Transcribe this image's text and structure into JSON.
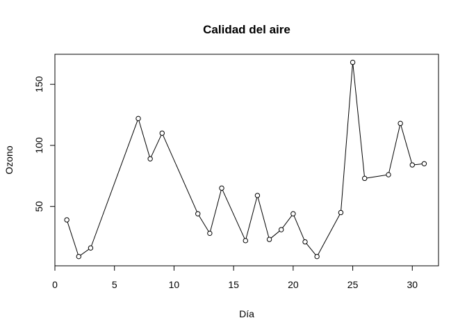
{
  "chart_data": {
    "type": "line",
    "title": "Calidad del aire",
    "xlabel": "Día",
    "ylabel": "Ozono",
    "xlim": [
      0,
      32.2
    ],
    "ylim": [
      1.4,
      174.6
    ],
    "xticks": [
      0,
      5,
      10,
      15,
      20,
      25,
      30
    ],
    "yticks": [
      50,
      100,
      150
    ],
    "grid": false,
    "legend": "none",
    "markers": "open-circle",
    "line_color": "#000000",
    "series": [
      {
        "x": [
          1,
          2,
          3,
          7,
          8,
          9,
          12,
          13,
          14,
          16,
          17,
          18,
          19,
          20,
          21,
          22,
          24,
          25,
          26,
          28,
          29,
          30,
          31
        ],
        "y": [
          39,
          9,
          16,
          122,
          89,
          110,
          44,
          28,
          65,
          22,
          59,
          23,
          31,
          44,
          21,
          9,
          45,
          168,
          73,
          76,
          118,
          84,
          85
        ]
      }
    ]
  }
}
